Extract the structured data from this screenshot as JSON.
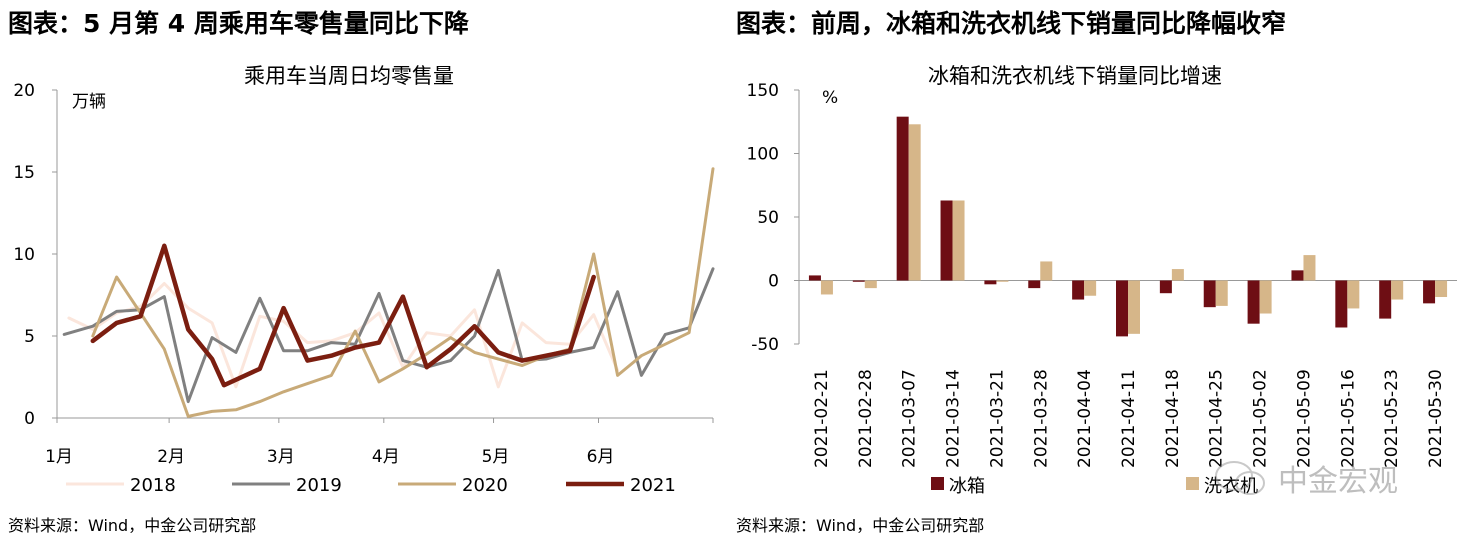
{
  "left": {
    "figure_title": "图表：5 月第 4 周乘用车零售量同比下降",
    "source": "资料来源：Wind，中金公司研究部"
  },
  "right": {
    "figure_title": "图表：前周，冰箱和洗衣机线下销量同比降幅收窄",
    "source": "资料来源：Wind，中金公司研究部"
  },
  "watermark": "中金宏观",
  "colors": {
    "s2018": "#fbe6dc",
    "s2019": "#808080",
    "s2020": "#c8aa78",
    "s2021": "#7b1e10",
    "fridge": "#6e0e14",
    "washer": "#d6b689"
  },
  "chart_data": [
    {
      "type": "line",
      "title": "乘用车当周日均零售量",
      "ylabel": "万辆",
      "ylim": [
        0,
        20
      ],
      "yticks": [
        0,
        5,
        10,
        15,
        20
      ],
      "x_tick_labels": [
        "1月",
        "2月",
        "3月",
        "4月",
        "5月",
        "6月"
      ],
      "x_tick_positions_week": [
        0,
        4.7,
        9.3,
        13.7,
        18.3,
        22.7
      ],
      "x_max_week": 27.5,
      "grid": false,
      "legend": "bottom",
      "series": [
        {
          "name": "2018",
          "x": [
            0.5,
            1.5,
            2.5,
            3.5,
            4.5,
            5.5,
            6.5,
            7.5,
            8.5,
            9.5,
            10.5,
            11.5,
            12.5,
            13.5,
            14.5,
            15.5,
            16.5,
            17.5,
            18.5,
            19.5,
            20.5,
            21.5,
            22.5,
            23.5
          ],
          "y": [
            6.1,
            5.4,
            6.4,
            6.8,
            8.2,
            6.7,
            5.8,
            1.9,
            6.2,
            5.9,
            4.6,
            4.7,
            5.2,
            6.4,
            3.1,
            5.2,
            5.0,
            6.6,
            1.9,
            5.8,
            4.6,
            4.5,
            6.3,
            2.9
          ]
        },
        {
          "name": "2019",
          "x": [
            0.3,
            1.5,
            2.5,
            3.5,
            4.5,
            5.5,
            6.5,
            7.5,
            8.5,
            9.5,
            10.5,
            11.5,
            12.5,
            13.5,
            14.5,
            15.5,
            16.5,
            17.5,
            18.5,
            19.5,
            20.5,
            21.5,
            22.5,
            23.5,
            24.5,
            25.5,
            26.5,
            27.5
          ],
          "y": [
            5.1,
            5.6,
            6.5,
            6.6,
            7.4,
            1.0,
            4.9,
            4.0,
            7.3,
            4.1,
            4.1,
            4.6,
            4.5,
            7.6,
            3.5,
            3.1,
            3.5,
            5.0,
            9.0,
            3.5,
            3.6,
            4.0,
            4.3,
            7.7,
            2.6,
            5.1,
            5.5,
            9.1
          ]
        },
        {
          "name": "2020",
          "x": [
            1.5,
            2.5,
            3.5,
            4.5,
            5.5,
            6.5,
            7.5,
            8.5,
            9.5,
            10.5,
            11.5,
            12.5,
            13.5,
            14.5,
            15.5,
            16.5,
            17.5,
            18.5,
            19.5,
            20.5,
            21.5,
            22.5,
            23.5,
            24.5,
            25.5,
            26.5,
            27.5
          ],
          "y": [
            5.0,
            8.6,
            6.4,
            4.2,
            0.1,
            0.4,
            0.5,
            1.0,
            1.6,
            2.1,
            2.6,
            5.3,
            2.2,
            3.0,
            3.9,
            4.9,
            4.0,
            3.6,
            3.2,
            3.8,
            4.2,
            10.0,
            2.6,
            3.8,
            4.5,
            5.2,
            15.2
          ]
        },
        {
          "name": "2021",
          "x": [
            1.5,
            2.5,
            3.5,
            4.5,
            5.5,
            6.5,
            7.0,
            8.5,
            9.5,
            10.5,
            11.5,
            12.5,
            13.5,
            14.5,
            15.5,
            16.5,
            17.5,
            18.5,
            19.5,
            20.5,
            21.5,
            22.5
          ],
          "y": [
            4.7,
            5.8,
            6.2,
            10.5,
            5.4,
            3.6,
            2.0,
            3.0,
            6.7,
            3.5,
            3.8,
            4.3,
            4.6,
            7.4,
            3.1,
            4.2,
            5.6,
            4.0,
            3.5,
            3.8,
            4.1,
            8.6
          ]
        }
      ]
    },
    {
      "type": "bar",
      "title": "冰箱和洗衣机线下销量同比增速",
      "ylabel": "%",
      "ylim": [
        -50,
        150
      ],
      "yticks": [
        -50,
        0,
        50,
        100,
        150
      ],
      "categories": [
        "2021-02-21",
        "2021-02-28",
        "2021-03-07",
        "2021-03-14",
        "2021-03-21",
        "2021-03-28",
        "2021-04-04",
        "2021-04-11",
        "2021-04-18",
        "2021-04-25",
        "2021-05-02",
        "2021-05-09",
        "2021-05-16",
        "2021-05-23",
        "2021-05-30"
      ],
      "grid": false,
      "legend": "bottom",
      "series": [
        {
          "name": "冰箱",
          "values": [
            4,
            -1,
            129,
            63,
            -3,
            -6,
            -15,
            -44,
            -10,
            -21,
            -34,
            8,
            -37,
            -30,
            -18
          ]
        },
        {
          "name": "洗衣机",
          "values": [
            -11,
            -6,
            123,
            63,
            -1,
            15,
            -12,
            -42,
            9,
            -20,
            -26,
            20,
            -22,
            -15,
            -13
          ]
        }
      ]
    }
  ]
}
